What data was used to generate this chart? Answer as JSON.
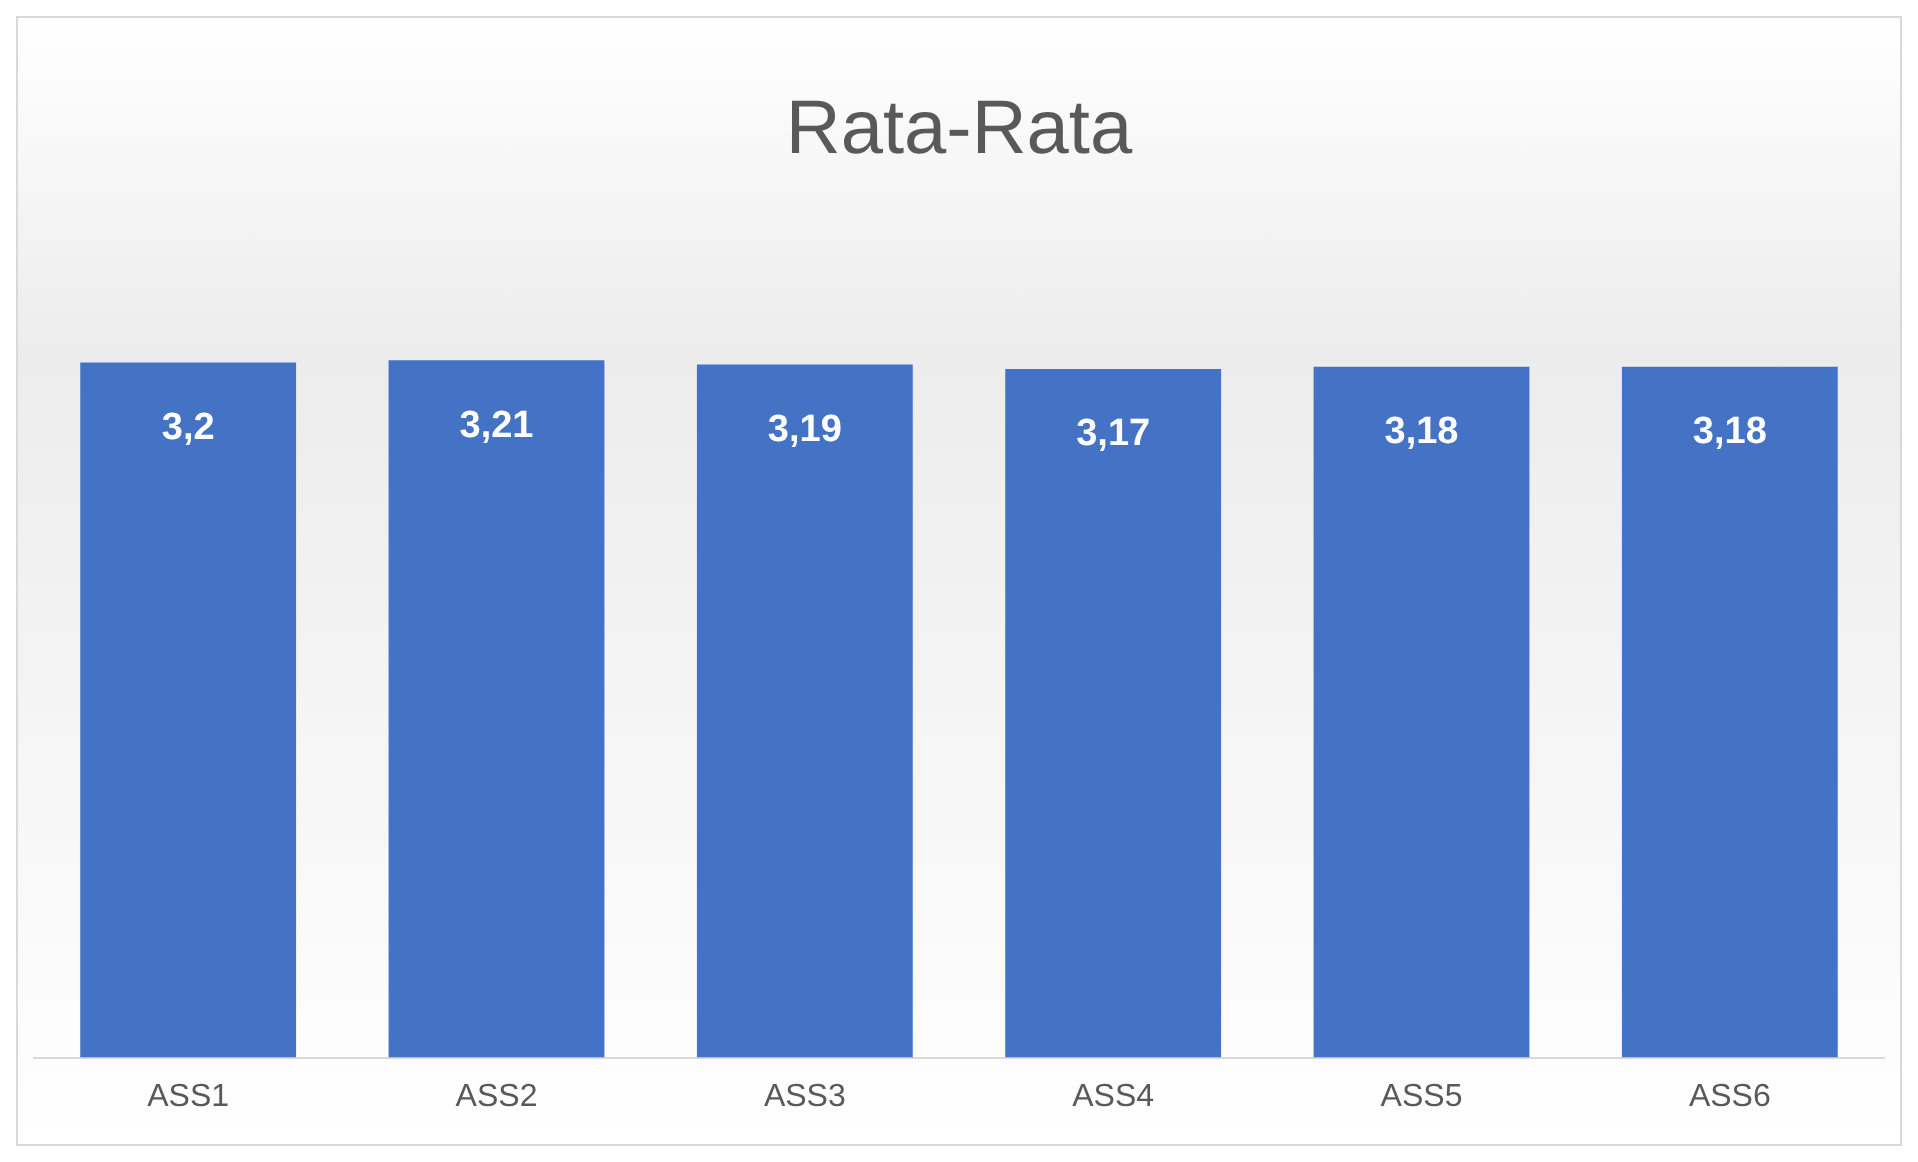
{
  "chart_data": {
    "type": "bar",
    "title": "Rata-Rata",
    "categories": [
      "ASS1",
      "ASS2",
      "ASS3",
      "ASS4",
      "ASS5",
      "ASS6"
    ],
    "values": [
      3.2,
      3.21,
      3.19,
      3.17,
      3.18,
      3.18
    ],
    "value_labels": [
      "3,2",
      "3,21",
      "3,19",
      "3,17",
      "3,18",
      "3,18"
    ],
    "color": "#4472c4",
    "tick_labels": "x",
    "grid": false,
    "legend": false
  }
}
